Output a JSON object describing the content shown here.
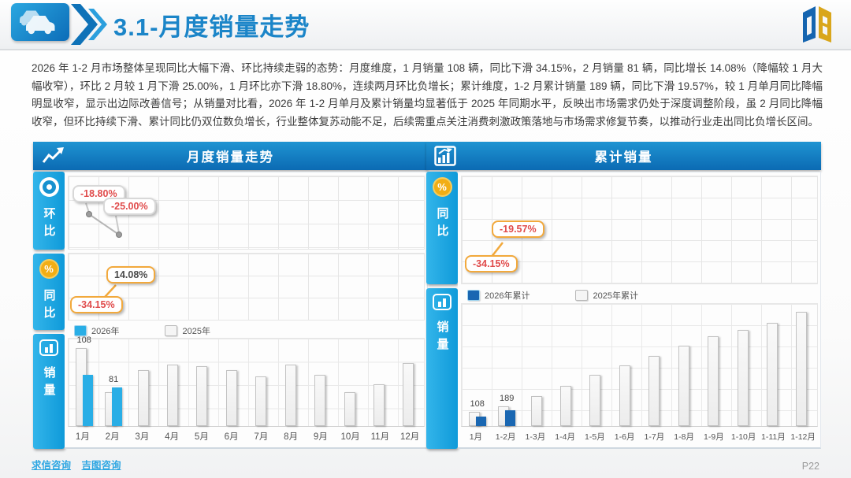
{
  "page": {
    "title": "3.1-月度销量走势",
    "page_number": "P22",
    "footer_links": [
      "求信咨询",
      "吉图咨询"
    ]
  },
  "summary": "2026 年 1-2 月市场整体呈现同比大幅下滑、环比持续走弱的态势：月度维度，1 月销量 108 辆，同比下滑 34.15%，2 月销量 81 辆，同比增长 14.08%（降幅较 1 月大幅收窄），环比 2 月较 1 月下滑 25.00%，1 月环比亦下滑 18.80%，连续两月环比负增长；累计维度，1-2 月累计销量 189 辆，同比下滑 19.57%，较 1 月单月同比降幅明显收窄，显示出边际改善信号；从销量对比看，2026 年 1-2 月单月及累计销量均显著低于 2025 年同期水平，反映出市场需求仍处于深度调整阶段，虽 2 月同比降幅收窄，但环比持续下滑、累计同比仍双位数负增长，行业整体复苏动能不足，后续需重点关注消费刺激政策落地与市场需求修复节奏，以推动行业走出同比负增长区间。",
  "panels": {
    "left": {
      "title": "月度销量走势",
      "tabs": [
        {
          "label": "环比",
          "icon": "bullseye"
        },
        {
          "label": "同比",
          "icon": "percent"
        },
        {
          "label": "销量",
          "icon": "bar-chart"
        }
      ]
    },
    "right": {
      "title": "累计销量",
      "tabs": [
        {
          "label": "同比",
          "icon": "percent"
        },
        {
          "label": "销量",
          "icon": "bar-chart"
        }
      ]
    }
  },
  "glyphs": {
    "percent": "%"
  },
  "colors": {
    "accent_blue": "#1b85c8",
    "panel_header_blue": "#0e6db5",
    "tab_blue": "#1fa5df",
    "bar_2026_monthly": "#29aee6",
    "bar_2026_cumulative": "#1a67b2",
    "bar_2025": "#f5f5f5",
    "callout_negative_text": "#e04b4b",
    "callout_orange_border": "#f2a93c",
    "logo_blue": "#1565b0",
    "logo_gold": "#d9a61b"
  },
  "chart_data": [
    {
      "id": "monthly-mom-growth",
      "type": "line",
      "title": "环比（月度环比增速）",
      "x": [
        "1月",
        "2月"
      ],
      "values": [
        -18.8,
        -25.0
      ],
      "labels": [
        "-18.80%",
        "-25.00%"
      ],
      "unit": "%",
      "grid": true,
      "legend_position": "none"
    },
    {
      "id": "monthly-yoy-growth",
      "type": "line",
      "title": "同比（月度同比增速）",
      "x": [
        "1月",
        "2月"
      ],
      "values": [
        -34.15,
        14.08
      ],
      "labels": [
        "-34.15%",
        "14.08%"
      ],
      "unit": "%",
      "grid": true,
      "legend_position": "none"
    },
    {
      "id": "monthly-sales",
      "type": "bar",
      "title": "销量（月度销量对比）",
      "categories": [
        "1月",
        "2月",
        "3月",
        "4月",
        "5月",
        "6月",
        "7月",
        "8月",
        "9月",
        "10月",
        "11月",
        "12月"
      ],
      "series": [
        {
          "name": "2026年",
          "color": "#29aee6",
          "values": [
            108,
            81,
            null,
            null,
            null,
            null,
            null,
            null,
            null,
            null,
            null,
            null
          ]
        },
        {
          "name": "2025年",
          "color": "#f5f5f5",
          "values": [
            164,
            71,
            117,
            129,
            125,
            118,
            104,
            129,
            108,
            71,
            87,
            132
          ]
        }
      ],
      "ylim": [
        0,
        180
      ],
      "grid": true,
      "legend_position": "top-left"
    },
    {
      "id": "cumulative-sales",
      "type": "bar",
      "title": "销量（累计销量对比）",
      "categories": [
        "1月",
        "1-2月",
        "1-3月",
        "1-4月",
        "1-5月",
        "1-6月",
        "1-7月",
        "1-8月",
        "1-9月",
        "1-10月",
        "1-11月",
        "1-12月"
      ],
      "series": [
        {
          "name": "2026年累计",
          "color": "#1a67b2",
          "values": [
            108,
            189,
            null,
            null,
            null,
            null,
            null,
            null,
            null,
            null,
            null,
            null
          ]
        },
        {
          "name": "2025年累计",
          "color": "#f5f5f5",
          "values": [
            164,
            235,
            352,
            481,
            606,
            724,
            828,
            957,
            1065,
            1136,
            1223,
            1355
          ]
        }
      ],
      "ylim": [
        0,
        1430
      ],
      "grid": true,
      "legend_position": "top-left"
    },
    {
      "id": "cumulative-yoy-growth",
      "type": "line",
      "title": "同比（累计同比增速）",
      "x": [
        "1月",
        "1-2月"
      ],
      "values": [
        -34.15,
        -19.57
      ],
      "labels": [
        "-34.15%",
        "-19.57%"
      ],
      "unit": "%",
      "grid": true,
      "legend_position": "none"
    }
  ]
}
